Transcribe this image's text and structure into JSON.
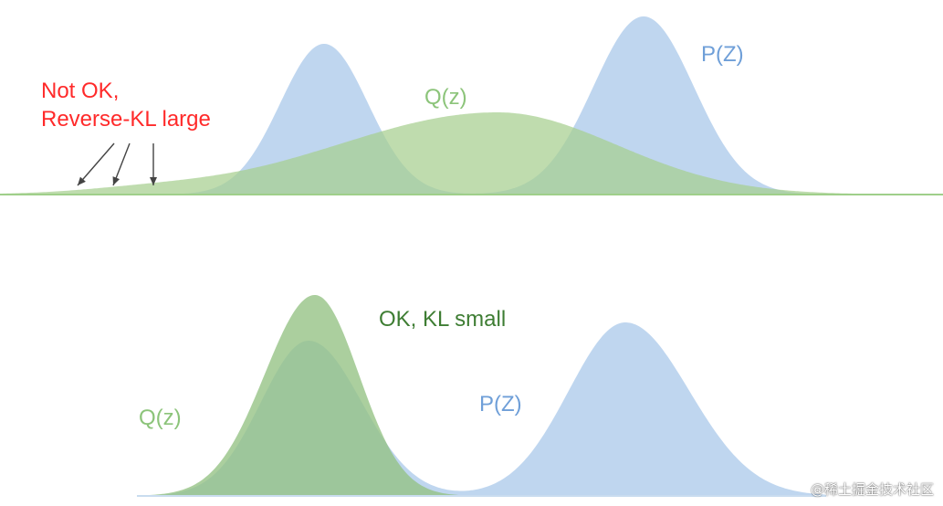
{
  "colors": {
    "p_fill": "#bcd4ee",
    "q_fill_top": "#a6cf8f",
    "q_fill_bottom": "#93c283",
    "p_label": "#6f9fd8",
    "q_label": "#8cc47a",
    "warning_label": "#ff2a2a",
    "ok_label": "#3e7d33",
    "arrow": "#444444"
  },
  "top_panel": {
    "p_label": "P(Z)",
    "q_label": "Q(z)",
    "warning_line1": "Not OK,",
    "warning_line2": "Reverse-KL large"
  },
  "bottom_panel": {
    "p_label": "P(Z)",
    "q_label": "Q(z)",
    "ok_label": "OK, KL small"
  },
  "watermark": "@稀土掘金技术社区"
}
